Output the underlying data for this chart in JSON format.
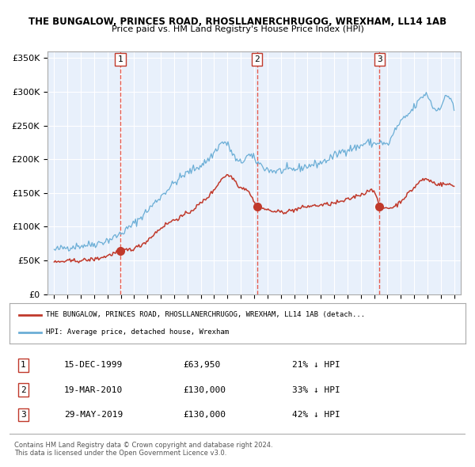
{
  "title": "THE BUNGALOW, PRINCES ROAD, RHOSLLANERCHRUGOG, WREXHAM, LL14 1AB",
  "subtitle": "Price paid vs. HM Land Registry's House Price Index (HPI)",
  "plot_bg_color": "#e8f0fb",
  "hpi_color": "#6baed6",
  "price_color": "#c0392b",
  "marker_color": "#c0392b",
  "vline_color": "#e74c3c",
  "ylim": [
    0,
    360000
  ],
  "yticks": [
    0,
    50000,
    100000,
    150000,
    200000,
    250000,
    300000,
    350000
  ],
  "ytick_labels": [
    "£0",
    "£50K",
    "£100K",
    "£150K",
    "£200K",
    "£250K",
    "£300K",
    "£350K"
  ],
  "xlim_start": 1994.5,
  "xlim_end": 2025.5,
  "xtick_years": [
    1995,
    1996,
    1997,
    1998,
    1999,
    2000,
    2001,
    2002,
    2003,
    2004,
    2005,
    2006,
    2007,
    2008,
    2009,
    2010,
    2011,
    2012,
    2013,
    2014,
    2015,
    2016,
    2017,
    2018,
    2019,
    2020,
    2021,
    2022,
    2023,
    2024,
    2025
  ],
  "sale_dates": [
    1999.96,
    2010.22,
    2019.41
  ],
  "sale_prices": [
    63950,
    130000,
    130000
  ],
  "sale_labels": [
    "1",
    "2",
    "3"
  ],
  "legend_line1": "THE BUNGALOW, PRINCES ROAD, RHOSLLANERCHRUGOG, WREXHAM, LL14 1AB (detach...",
  "legend_line2": "HPI: Average price, detached house, Wrexham",
  "table_rows": [
    [
      "1",
      "15-DEC-1999",
      "£63,950",
      "21% ↓ HPI"
    ],
    [
      "2",
      "19-MAR-2010",
      "£130,000",
      "33% ↓ HPI"
    ],
    [
      "3",
      "29-MAY-2019",
      "£130,000",
      "42% ↓ HPI"
    ]
  ],
  "footer": "Contains HM Land Registry data © Crown copyright and database right 2024.\nThis data is licensed under the Open Government Licence v3.0."
}
